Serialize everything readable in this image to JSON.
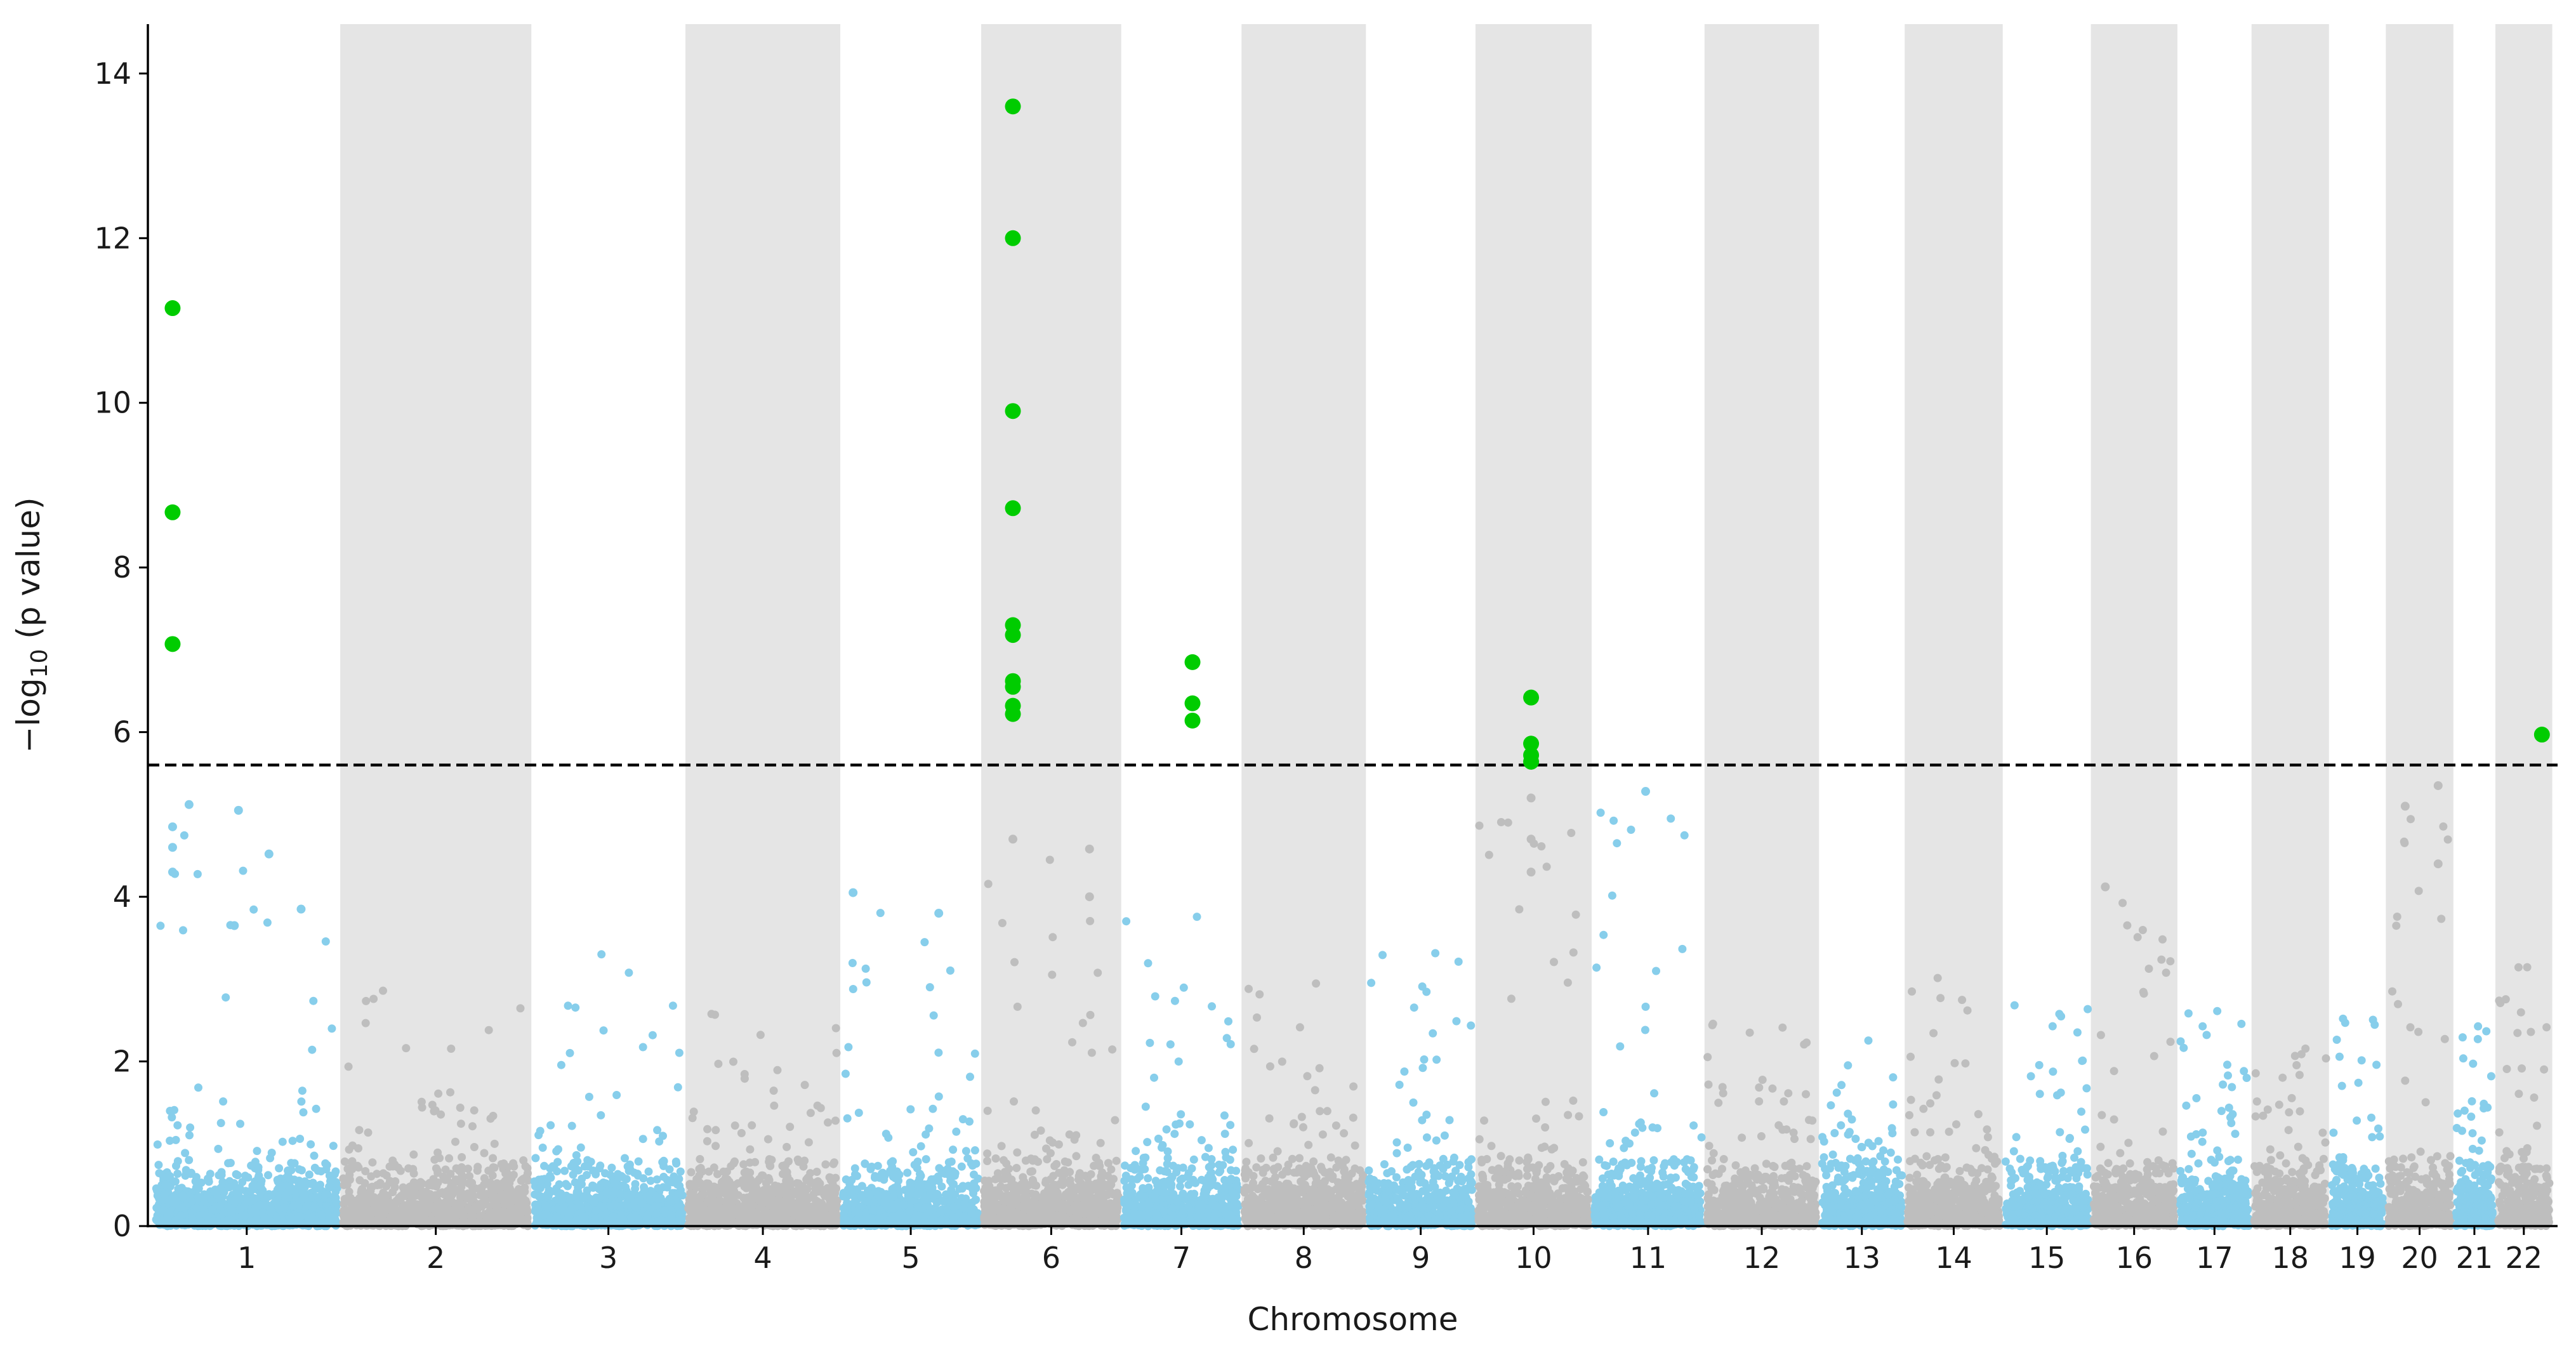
{
  "chart_data": {
    "type": "scatter",
    "subtype": "manhattan",
    "title": "",
    "xlabel": "Chromosome",
    "ylabel": "−log10 (p value)",
    "ylim": [
      0,
      14.6
    ],
    "yticks": [
      0,
      2,
      4,
      6,
      8,
      10,
      12,
      14
    ],
    "threshold": 5.6,
    "colors": {
      "odd_chromosome": "#87ceeb",
      "even_chromosome": "#bebebe",
      "significant": "#00cc00",
      "band": "#e5e5e5",
      "threshold_line": "#000000",
      "axis": "#000000"
    },
    "chromosomes": [
      {
        "label": "1",
        "start": 0,
        "end": 220,
        "peak": 5.1
      },
      {
        "label": "2",
        "start": 227,
        "end": 452,
        "peak": 3.2
      },
      {
        "label": "3",
        "start": 459,
        "end": 639,
        "peak": 3.5
      },
      {
        "label": "4",
        "start": 646,
        "end": 827,
        "peak": 2.8
      },
      {
        "label": "5",
        "start": 834,
        "end": 998,
        "peak": 4.05
      },
      {
        "label": "6",
        "start": 1005,
        "end": 1168,
        "peak": 4.7
      },
      {
        "label": "7",
        "start": 1175,
        "end": 1314,
        "peak": 4.0
      },
      {
        "label": "8",
        "start": 1321,
        "end": 1465,
        "peak": 3.3
      },
      {
        "label": "9",
        "start": 1472,
        "end": 1598,
        "peak": 3.6
      },
      {
        "label": "10",
        "start": 1605,
        "end": 1739,
        "peak": 5.3
      },
      {
        "label": "11",
        "start": 1746,
        "end": 1876,
        "peak": 5.3
      },
      {
        "label": "12",
        "start": 1883,
        "end": 2015,
        "peak": 3.0
      },
      {
        "label": "13",
        "start": 2022,
        "end": 2119,
        "peak": 2.5
      },
      {
        "label": "14",
        "start": 2126,
        "end": 2238,
        "peak": 3.35
      },
      {
        "label": "15",
        "start": 2245,
        "end": 2345,
        "peak": 2.9
      },
      {
        "label": "16",
        "start": 2352,
        "end": 2450,
        "peak": 4.15
      },
      {
        "label": "17",
        "start": 2457,
        "end": 2540,
        "peak": 2.85
      },
      {
        "label": "18",
        "start": 2547,
        "end": 2634,
        "peak": 2.35
      },
      {
        "label": "19",
        "start": 2641,
        "end": 2703,
        "peak": 2.7
      },
      {
        "label": "20",
        "start": 2710,
        "end": 2785,
        "peak": 5.35
      },
      {
        "label": "21",
        "start": 2792,
        "end": 2836,
        "peak": 2.75
      },
      {
        "label": "22",
        "start": 2843,
        "end": 2905,
        "peak": 3.4
      }
    ],
    "significant_points": [
      {
        "chromosome": "1",
        "x": 20,
        "y": 11.15
      },
      {
        "chromosome": "1",
        "x": 20,
        "y": 8.67
      },
      {
        "chromosome": "1",
        "x": 20,
        "y": 7.07
      },
      {
        "chromosome": "6",
        "x": 1040,
        "y": 13.6
      },
      {
        "chromosome": "6",
        "x": 1040,
        "y": 12.0
      },
      {
        "chromosome": "6",
        "x": 1040,
        "y": 9.9
      },
      {
        "chromosome": "6",
        "x": 1040,
        "y": 8.72
      },
      {
        "chromosome": "6",
        "x": 1040,
        "y": 7.3
      },
      {
        "chromosome": "6",
        "x": 1040,
        "y": 7.18
      },
      {
        "chromosome": "6",
        "x": 1040,
        "y": 6.62
      },
      {
        "chromosome": "6",
        "x": 1040,
        "y": 6.55
      },
      {
        "chromosome": "6",
        "x": 1040,
        "y": 6.32
      },
      {
        "chromosome": "6",
        "x": 1040,
        "y": 6.22
      },
      {
        "chromosome": "7",
        "x": 1258,
        "y": 6.85
      },
      {
        "chromosome": "7",
        "x": 1258,
        "y": 6.35
      },
      {
        "chromosome": "7",
        "x": 1258,
        "y": 6.14
      },
      {
        "chromosome": "10",
        "x": 1669,
        "y": 6.42
      },
      {
        "chromosome": "10",
        "x": 1669,
        "y": 5.86
      },
      {
        "chromosome": "10",
        "x": 1669,
        "y": 5.72
      },
      {
        "chromosome": "10",
        "x": 1669,
        "y": 5.64
      },
      {
        "chromosome": "22",
        "x": 2896,
        "y": 5.97
      }
    ],
    "notable_subthreshold_points": [
      {
        "chromosome": "1",
        "x": 20,
        "y": 4.85
      },
      {
        "chromosome": "1",
        "x": 20,
        "y": 4.6
      },
      {
        "chromosome": "1",
        "x": 20,
        "y": 4.3
      },
      {
        "chromosome": "1",
        "x": 40,
        "y": 5.12
      },
      {
        "chromosome": "1",
        "x": 100,
        "y": 5.05
      },
      {
        "chromosome": "1",
        "x": 95,
        "y": 3.65
      },
      {
        "chromosome": "1",
        "x": 137,
        "y": 4.52
      },
      {
        "chromosome": "1",
        "x": 176,
        "y": 3.85
      },
      {
        "chromosome": "5",
        "x": 846,
        "y": 4.05
      },
      {
        "chromosome": "5",
        "x": 950,
        "y": 3.8
      },
      {
        "chromosome": "6",
        "x": 1040,
        "y": 4.7
      },
      {
        "chromosome": "6",
        "x": 1133,
        "y": 4.58
      },
      {
        "chromosome": "6",
        "x": 1133,
        "y": 4.0
      },
      {
        "chromosome": "10",
        "x": 1669,
        "y": 5.2
      },
      {
        "chromosome": "10",
        "x": 1669,
        "y": 4.7
      },
      {
        "chromosome": "10",
        "x": 1669,
        "y": 4.3
      },
      {
        "chromosome": "11",
        "x": 1808,
        "y": 5.28
      },
      {
        "chromosome": "16",
        "x": 2366,
        "y": 4.12
      },
      {
        "chromosome": "20",
        "x": 2730,
        "y": 5.1
      },
      {
        "chromosome": "20",
        "x": 2770,
        "y": 5.35
      },
      {
        "chromosome": "20",
        "x": 2770,
        "y": 4.4
      }
    ]
  }
}
